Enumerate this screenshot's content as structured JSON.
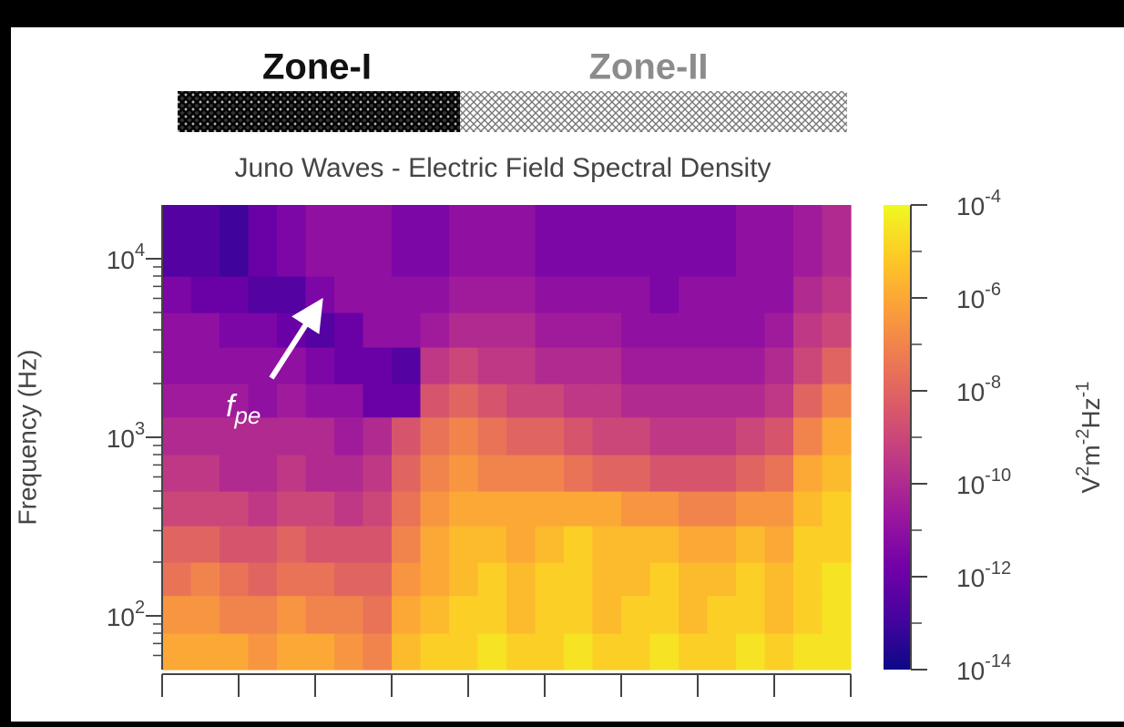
{
  "chart_data": {
    "type": "heatmap",
    "title": "Juno Waves - Electric Field Spectral Density",
    "zones": [
      {
        "text": "Zone-I",
        "color": "#111111"
      },
      {
        "text": "Zone-II",
        "color": "#8c8c8c"
      }
    ],
    "annotation": {
      "text": "f",
      "subscript": "pe",
      "color": "#ffffff"
    },
    "ylabel": "Frequency (Hz)",
    "log_y": true,
    "ylim": [
      50,
      20000
    ],
    "yticks": [
      {
        "value": 100,
        "label": "10",
        "exponent": "2"
      },
      {
        "value": 1000,
        "label": "10",
        "exponent": "3"
      },
      {
        "value": 10000,
        "label": "10",
        "exponent": "4"
      }
    ],
    "yminorticks": [
      60,
      70,
      80,
      90,
      200,
      300,
      400,
      500,
      600,
      700,
      800,
      900,
      2000,
      3000,
      4000,
      5000,
      6000,
      7000,
      8000,
      9000
    ],
    "categories": [
      null,
      null,
      null,
      null,
      null,
      null,
      null,
      null,
      null,
      null,
      null,
      null,
      null,
      null,
      null,
      null,
      null,
      null,
      null,
      null,
      null,
      null,
      null,
      null
    ],
    "ybins": [
      50,
      80,
      130,
      200,
      320,
      500,
      800,
      1300,
      2000,
      3200,
      5000,
      8000,
      20000
    ],
    "values": [
      [
        1e-06,
        1e-06,
        1e-06,
        3e-07,
        1e-06,
        1e-06,
        3e-07,
        1e-07,
        3e-06,
        1e-05,
        1e-05,
        3e-05,
        1e-05,
        1e-05,
        3e-05,
        1e-05,
        1e-05,
        3e-05,
        1e-05,
        1e-05,
        3e-05,
        1e-05,
        3e-05,
        3e-05
      ],
      [
        3e-07,
        3e-07,
        1e-07,
        1e-07,
        3e-07,
        1e-07,
        1e-07,
        3e-08,
        1e-06,
        3e-06,
        1e-05,
        1e-05,
        3e-06,
        1e-05,
        1e-05,
        3e-06,
        1e-05,
        1e-05,
        3e-06,
        1e-05,
        1e-05,
        3e-06,
        1e-05,
        3e-05
      ],
      [
        3e-08,
        1e-07,
        3e-08,
        1e-08,
        3e-08,
        3e-08,
        1e-08,
        1e-08,
        3e-07,
        1e-06,
        3e-06,
        1e-05,
        3e-06,
        1e-05,
        1e-05,
        3e-06,
        3e-06,
        1e-05,
        3e-06,
        3e-06,
        1e-05,
        3e-06,
        1e-05,
        3e-05
      ],
      [
        1e-08,
        1e-08,
        3e-09,
        3e-09,
        1e-08,
        3e-09,
        3e-09,
        3e-09,
        1e-07,
        1e-06,
        3e-06,
        3e-06,
        1e-06,
        3e-06,
        1e-05,
        3e-06,
        3e-06,
        3e-06,
        1e-06,
        1e-06,
        3e-06,
        1e-06,
        1e-05,
        1e-05
      ],
      [
        1e-09,
        1e-09,
        1e-09,
        3e-10,
        1e-09,
        1e-09,
        3e-10,
        1e-09,
        3e-08,
        3e-07,
        1e-06,
        1e-06,
        1e-06,
        1e-06,
        1e-06,
        1e-06,
        3e-07,
        3e-07,
        1e-07,
        1e-07,
        3e-07,
        3e-07,
        3e-06,
        1e-05
      ],
      [
        3e-10,
        3e-10,
        1e-10,
        1e-10,
        3e-10,
        1e-10,
        1e-10,
        3e-10,
        1e-08,
        1e-07,
        3e-07,
        1e-07,
        1e-07,
        1e-07,
        3e-08,
        1e-08,
        1e-08,
        3e-09,
        3e-09,
        3e-09,
        1e-08,
        3e-08,
        1e-06,
        3e-06
      ],
      [
        1e-10,
        1e-10,
        1e-10,
        1e-10,
        1e-10,
        1e-10,
        3e-11,
        1e-10,
        3e-09,
        3e-08,
        1e-07,
        3e-08,
        1e-08,
        1e-08,
        3e-09,
        1e-09,
        1e-09,
        3e-10,
        3e-10,
        3e-10,
        1e-09,
        3e-09,
        1e-07,
        1e-06
      ],
      [
        3e-11,
        3e-11,
        3e-11,
        1e-11,
        3e-11,
        1e-11,
        1e-11,
        1e-12,
        1e-12,
        3e-09,
        1e-08,
        3e-09,
        1e-09,
        1e-09,
        3e-10,
        3e-10,
        1e-10,
        1e-10,
        1e-10,
        1e-10,
        1e-10,
        3e-10,
        1e-08,
        1e-07
      ],
      [
        1e-11,
        1e-11,
        1e-11,
        1e-11,
        1e-11,
        3e-12,
        1e-12,
        1e-12,
        3e-13,
        3e-10,
        1e-09,
        3e-10,
        3e-10,
        1e-10,
        1e-10,
        1e-10,
        3e-11,
        3e-11,
        3e-11,
        3e-11,
        3e-11,
        1e-10,
        1e-09,
        1e-08
      ],
      [
        1e-11,
        1e-11,
        3e-12,
        3e-12,
        1e-12,
        3e-13,
        1e-12,
        1e-11,
        1e-11,
        3e-11,
        1e-10,
        1e-10,
        1e-10,
        3e-11,
        3e-11,
        3e-11,
        1e-11,
        1e-11,
        1e-11,
        1e-11,
        1e-11,
        3e-11,
        3e-10,
        1e-09
      ],
      [
        3e-12,
        1e-12,
        1e-12,
        3e-13,
        3e-13,
        3e-12,
        1e-11,
        1e-11,
        1e-11,
        1e-11,
        3e-11,
        3e-11,
        3e-11,
        1e-11,
        1e-11,
        1e-11,
        1e-11,
        3e-12,
        1e-11,
        1e-11,
        1e-11,
        1e-11,
        1e-10,
        3e-10
      ],
      [
        3e-13,
        3e-13,
        1e-13,
        1e-12,
        3e-12,
        1e-11,
        1e-11,
        1e-11,
        3e-12,
        3e-12,
        1e-11,
        1e-11,
        1e-11,
        3e-12,
        3e-12,
        3e-12,
        3e-12,
        3e-12,
        3e-12,
        3e-12,
        1e-11,
        1e-11,
        3e-11,
        1e-10
      ]
    ],
    "colorbar": {
      "label": [
        "V",
        "2",
        "m",
        "-2",
        "Hz",
        "-1"
      ],
      "log": true,
      "lim": [
        1e-14,
        0.0001
      ],
      "ticks": [
        {
          "value": 0.0001,
          "label": "10",
          "exponent": "-4"
        },
        {
          "value": 1e-06,
          "label": "10",
          "exponent": "-6"
        },
        {
          "value": 1e-08,
          "label": "10",
          "exponent": "-8"
        },
        {
          "value": 1e-10,
          "label": "10",
          "exponent": "-10"
        },
        {
          "value": 1e-12,
          "label": "10",
          "exponent": "-12"
        },
        {
          "value": 1e-14,
          "label": "10",
          "exponent": "-14"
        }
      ],
      "minorticks": [
        1e-05,
        1e-07,
        1e-09,
        1e-11,
        1e-13
      ],
      "colormap": [
        "#0d0887",
        "#46039f",
        "#7201a8",
        "#9c179e",
        "#bd3786",
        "#d8576b",
        "#ed7953",
        "#fb9f3a",
        "#fdca26",
        "#f0f921"
      ]
    }
  }
}
